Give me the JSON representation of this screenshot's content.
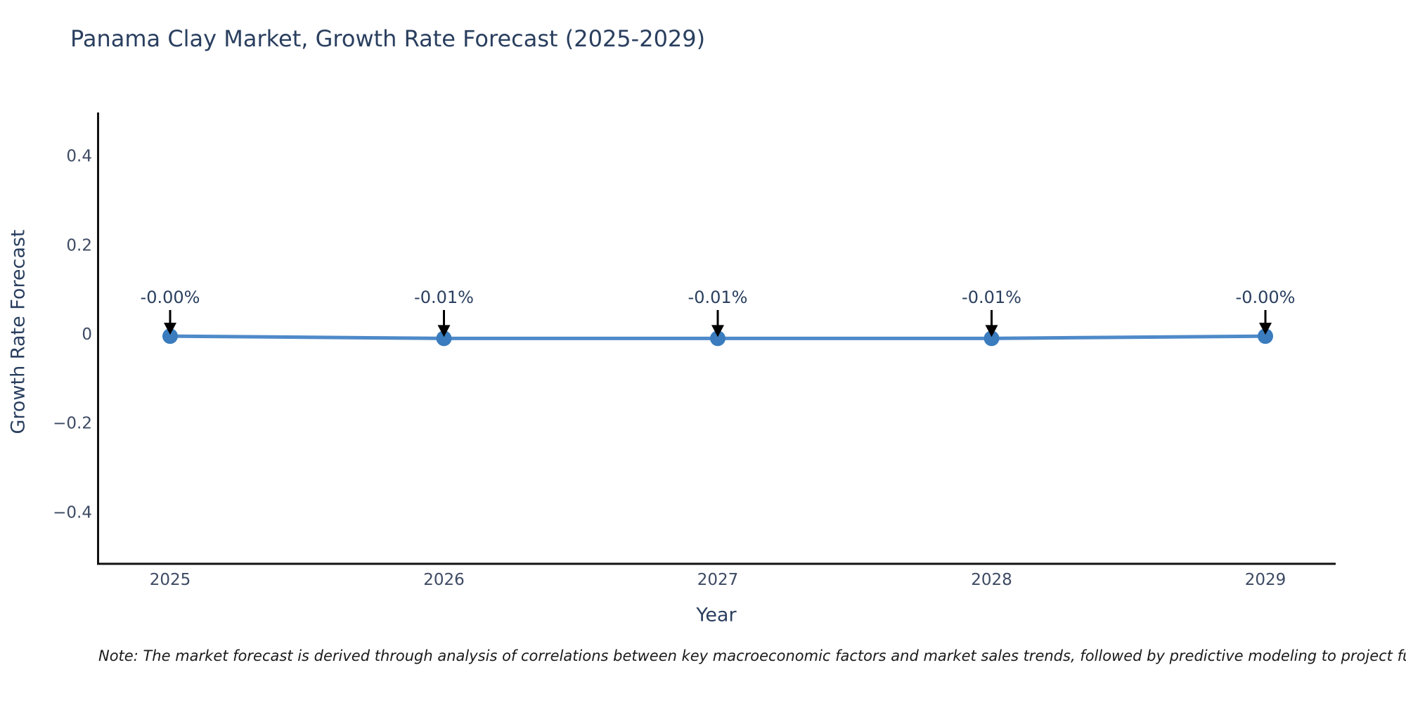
{
  "title": "Panama Clay Market, Growth Rate Forecast (2025-2029)",
  "note": "Note: The market forecast is derived through analysis of correlations between key macroeconomic factors and market sales trends, followed by predictive modeling to project future sales",
  "colors": {
    "background": "#ffffff",
    "title_text": "#2a3f5f",
    "tick_text": "#3d4a63",
    "axis_line": "#111111",
    "trend_line": "#4f8ac9",
    "marker_fill": "#3a7cbe",
    "annotation_text": "#2a3f5f",
    "annotation_arrow": "#000000",
    "note_text": "#1a1a1a"
  },
  "chart_data": {
    "type": "line",
    "title": "Panama Clay Market, Growth Rate Forecast (2025-2029)",
    "xlabel": "Year",
    "ylabel": "Growth Rate Forecast",
    "x": [
      2025,
      2026,
      2027,
      2028,
      2029
    ],
    "values": [
      -0.005,
      -0.01,
      -0.01,
      -0.01,
      -0.005
    ],
    "point_labels": [
      "-0.00%",
      "-0.01%",
      "-0.01%",
      "-0.01%",
      "-0.00%"
    ],
    "xtick_labels": [
      "2025",
      "2026",
      "2027",
      "2028",
      "2029"
    ],
    "yticks": [
      0.4,
      0.2,
      0,
      -0.2,
      -0.4
    ],
    "ytick_labels": [
      "0.4",
      "0.2",
      "0",
      "−0.2",
      "−0.4"
    ],
    "ylim": [
      -0.52,
      0.5
    ],
    "grid": false,
    "legend": false,
    "marker": "circle",
    "annotation_arrow_direction": "down"
  }
}
